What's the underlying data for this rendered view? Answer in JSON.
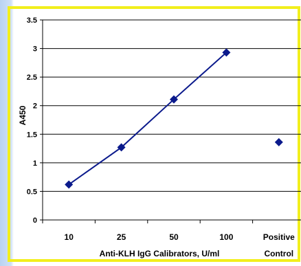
{
  "chart_data": {
    "type": "line",
    "title": "",
    "xlabel": "Anti-KLH IgG Calibrators, U/ml",
    "ylabel": "A450",
    "categories": [
      {
        "line1": "10",
        "line2": ""
      },
      {
        "line1": "25",
        "line2": ""
      },
      {
        "line1": "50",
        "line2": ""
      },
      {
        "line1": "100",
        "line2": ""
      },
      {
        "line1": "Positive",
        "line2": "Control"
      }
    ],
    "yticks": [
      "0",
      "0.5",
      "1",
      "1.5",
      "2",
      "2.5",
      "3",
      "3.5"
    ],
    "ylim": [
      0,
      3.5
    ],
    "grid": true,
    "series": [
      {
        "values": [
          0.62,
          1.27,
          2.11,
          2.93,
          null
        ],
        "connected": true,
        "marker": "diamond",
        "color": "#0b1a8c"
      },
      {
        "values": [
          null,
          null,
          null,
          null,
          1.36
        ],
        "connected": false,
        "marker": "diamond",
        "color": "#0b1a8c"
      }
    ]
  },
  "colors": {
    "frame_border": "#f2ef1c",
    "marker": "#0b1a8c",
    "grid": "#000000"
  }
}
